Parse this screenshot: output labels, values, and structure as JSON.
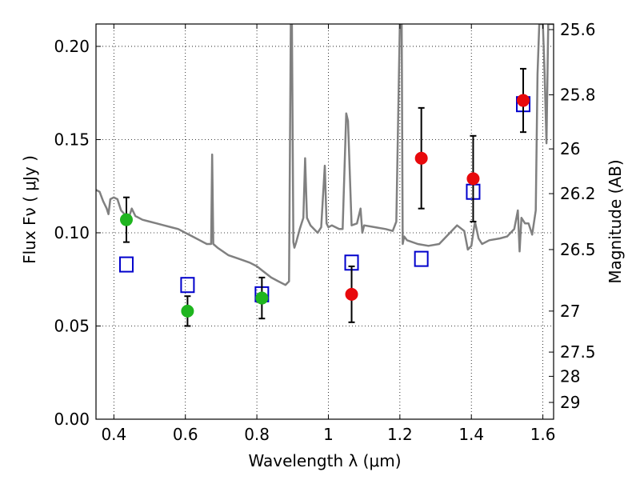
{
  "chart_data": {
    "type": "scatter",
    "xlabel": "Wavelength  λ (μm)",
    "ylabel_left": "Flux  Fν  ( μJy )",
    "ylabel_right": "Magnitude (AB)",
    "xlim": [
      0.35,
      1.63
    ],
    "ylim": [
      0.0,
      0.212
    ],
    "grid": true,
    "x_ticks": [
      0.4,
      0.6,
      0.8,
      1.0,
      1.2,
      1.4,
      1.6
    ],
    "x_tick_labels": [
      "0.4",
      "0.6",
      "0.8",
      "1",
      "1.2",
      "1.4",
      "1.6"
    ],
    "y_ticks": [
      0.0,
      0.05,
      0.1,
      0.15,
      0.2
    ],
    "y_tick_labels": [
      "0.00",
      "0.05",
      "0.10",
      "0.15",
      "0.20"
    ],
    "right_ticks": [
      {
        "flux": 0.209,
        "label": "25.6"
      },
      {
        "flux": 0.174,
        "label": "25.8"
      },
      {
        "flux": 0.145,
        "label": "26"
      },
      {
        "flux": 0.121,
        "label": "26.2"
      },
      {
        "flux": 0.091,
        "label": "26.5"
      },
      {
        "flux": 0.058,
        "label": "27"
      },
      {
        "flux": 0.036,
        "label": "27.5"
      },
      {
        "flux": 0.023,
        "label": "28"
      },
      {
        "flux": 0.009,
        "label": "29"
      }
    ],
    "colors": {
      "green": "#1fb51f",
      "red": "#e8090c",
      "model_box": "#0000cc",
      "sed": "#808080",
      "errorbar": "#000000"
    },
    "series": [
      {
        "type": "scatter-errorbar",
        "marker": "circle",
        "color": "#1fb51f",
        "points": [
          {
            "x": 0.435,
            "y": 0.107,
            "yerr": 0.012
          },
          {
            "x": 0.606,
            "y": 0.058,
            "yerr": 0.008
          },
          {
            "x": 0.814,
            "y": 0.065,
            "yerr": 0.011
          }
        ]
      },
      {
        "type": "scatter-errorbar",
        "marker": "circle",
        "color": "#e8090c",
        "points": [
          {
            "x": 1.065,
            "y": 0.067,
            "yerr": 0.015
          },
          {
            "x": 1.26,
            "y": 0.14,
            "yerr": 0.027
          },
          {
            "x": 1.405,
            "y": 0.129,
            "yerr": 0.023
          },
          {
            "x": 1.545,
            "y": 0.171,
            "yerr": 0.017
          }
        ]
      },
      {
        "type": "scatter",
        "marker": "open-square",
        "color": "#0000cc",
        "points": [
          {
            "x": 0.435,
            "y": 0.083
          },
          {
            "x": 0.606,
            "y": 0.072
          },
          {
            "x": 0.814,
            "y": 0.067
          },
          {
            "x": 1.065,
            "y": 0.084
          },
          {
            "x": 1.26,
            "y": 0.086
          },
          {
            "x": 1.405,
            "y": 0.122
          },
          {
            "x": 1.545,
            "y": 0.169
          }
        ]
      },
      {
        "type": "line",
        "color": "#808080",
        "x": [
          0.35,
          0.36,
          0.37,
          0.38,
          0.385,
          0.39,
          0.4,
          0.41,
          0.42,
          0.43,
          0.44,
          0.45,
          0.46,
          0.48,
          0.5,
          0.52,
          0.54,
          0.56,
          0.58,
          0.6,
          0.62,
          0.64,
          0.66,
          0.672,
          0.675,
          0.678,
          0.69,
          0.72,
          0.75,
          0.78,
          0.8,
          0.82,
          0.84,
          0.86,
          0.88,
          0.89,
          0.895,
          0.898,
          0.902,
          0.905,
          0.91,
          0.92,
          0.93,
          0.935,
          0.94,
          0.95,
          0.97,
          0.98,
          0.99,
          0.995,
          1.0,
          1.01,
          1.02,
          1.03,
          1.04,
          1.05,
          1.055,
          1.065,
          1.08,
          1.09,
          1.095,
          1.1,
          1.13,
          1.16,
          1.18,
          1.19,
          1.2,
          1.205,
          1.208,
          1.212,
          1.22,
          1.25,
          1.28,
          1.31,
          1.34,
          1.36,
          1.38,
          1.39,
          1.4,
          1.41,
          1.42,
          1.43,
          1.45,
          1.48,
          1.5,
          1.52,
          1.53,
          1.535,
          1.54,
          1.55,
          1.56,
          1.57,
          1.58,
          1.585,
          1.59,
          1.6,
          1.605,
          1.61,
          1.615,
          1.62,
          1.625,
          1.63
        ],
        "y": [
          0.123,
          0.122,
          0.117,
          0.113,
          0.11,
          0.118,
          0.119,
          0.118,
          0.112,
          0.11,
          0.107,
          0.113,
          0.109,
          0.107,
          0.106,
          0.105,
          0.104,
          0.103,
          0.102,
          0.1,
          0.098,
          0.096,
          0.094,
          0.094,
          0.142,
          0.094,
          0.092,
          0.088,
          0.086,
          0.084,
          0.082,
          0.079,
          0.076,
          0.074,
          0.072,
          0.074,
          0.212,
          0.212,
          0.095,
          0.092,
          0.095,
          0.102,
          0.108,
          0.14,
          0.108,
          0.104,
          0.1,
          0.103,
          0.136,
          0.105,
          0.103,
          0.104,
          0.103,
          0.102,
          0.102,
          0.164,
          0.16,
          0.104,
          0.105,
          0.113,
          0.1,
          0.104,
          0.103,
          0.102,
          0.101,
          0.106,
          0.212,
          0.212,
          0.094,
          0.098,
          0.096,
          0.094,
          0.093,
          0.094,
          0.1,
          0.104,
          0.101,
          0.091,
          0.093,
          0.106,
          0.097,
          0.094,
          0.096,
          0.097,
          0.098,
          0.102,
          0.112,
          0.09,
          0.108,
          0.105,
          0.105,
          0.099,
          0.112,
          0.185,
          0.212,
          0.212,
          0.185,
          0.148,
          0.212,
          0.212,
          0.212,
          0.212
        ]
      }
    ]
  }
}
